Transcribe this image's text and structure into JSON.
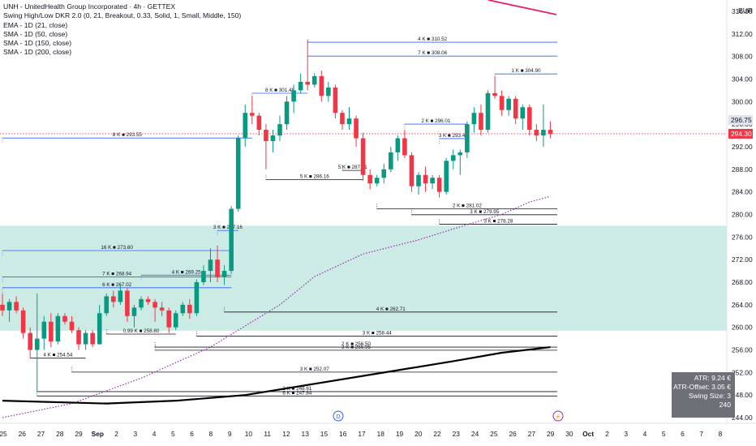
{
  "legend": {
    "title": "UNH - UnitedHealth Group Incorporated · 4h · GETTEX",
    "lines": [
      "Swing High/Low DKR 2.0 (0, 21, Breakout, 0.33, Solid, 1, Small, Middle, 150)",
      "EMA - 1D (21, close)",
      "SMA - 1D (50, close)",
      "SMA - 1D (150, close)",
      "SMA - 1D (200, close)"
    ]
  },
  "currency": "EUR",
  "stats_box": [
    "ATR: 9.24 €",
    "ATR-Offset: 3.05 €",
    "Swing Size: 3",
    "240"
  ],
  "event_markers": [
    {
      "label": "D",
      "date": "Sep 13",
      "color": "#2962ff"
    },
    {
      "label": "⚡",
      "date": "Sep 28",
      "color": "#9c27b0"
    }
  ],
  "chart_data": {
    "type": "candlestick",
    "title": "UNH - UnitedHealth Group Incorporated · 4h · GETTEX",
    "y_unit": "EUR",
    "ylim": [
      243,
      318
    ],
    "y_ticks": [
      244,
      248,
      252,
      256,
      260,
      264,
      268,
      272,
      276,
      280,
      284,
      288,
      292,
      296,
      300,
      304,
      308,
      312,
      316
    ],
    "x_tick_labels": [
      "25",
      "26",
      "27",
      "28",
      "29",
      "Sep",
      "2",
      "3",
      "4",
      "5",
      "6",
      "8",
      "9",
      "10",
      "11",
      "12",
      "13",
      "15",
      "16",
      "17",
      "18",
      "19",
      "20",
      "22",
      "23",
      "24",
      "25",
      "26",
      "27",
      "29",
      "30",
      "Oct",
      "2",
      "3",
      "4",
      "5",
      "6",
      "7",
      "8"
    ],
    "price_labels": {
      "last_high": "296.75",
      "last": "294.30"
    },
    "highlight_zone": {
      "from": 259.4,
      "to": 278.0,
      "color": "#cdebe5"
    },
    "candles": [
      [
        264.0,
        266.0,
        262.0,
        263.0
      ],
      [
        263.0,
        265.0,
        261.0,
        264.5
      ],
      [
        264.5,
        265.5,
        262.5,
        263.0
      ],
      [
        263.0,
        263.5,
        258.0,
        259.0
      ],
      [
        259.0,
        260.0,
        254.5,
        256.0
      ],
      [
        256.0,
        266.0,
        248.5,
        258.0
      ],
      [
        258.0,
        262.0,
        256.0,
        261.0
      ],
      [
        261.0,
        262.5,
        256.5,
        257.5
      ],
      [
        257.5,
        262.5,
        257.0,
        262.0
      ],
      [
        262.0,
        262.5,
        260.5,
        261.0
      ],
      [
        261.0,
        262.0,
        259.0,
        259.5
      ],
      [
        259.5,
        260.0,
        256.0,
        257.0
      ],
      [
        257.0,
        259.5,
        256.0,
        259.0
      ],
      [
        259.0,
        259.5,
        256.5,
        257.0
      ],
      [
        257.0,
        264.0,
        257.0,
        262.5
      ],
      [
        262.5,
        266.0,
        262.0,
        265.5
      ],
      [
        265.5,
        266.5,
        263.5,
        264.5
      ],
      [
        264.5,
        267.5,
        264.0,
        266.5
      ],
      [
        266.5,
        267.0,
        261.0,
        262.0
      ],
      [
        262.0,
        264.0,
        260.0,
        263.5
      ],
      [
        263.5,
        265.5,
        263.0,
        265.0
      ],
      [
        265.0,
        265.5,
        264.0,
        264.5
      ],
      [
        264.5,
        265.0,
        261.0,
        263.5
      ],
      [
        263.5,
        264.5,
        262.0,
        263.0
      ],
      [
        263.0,
        263.5,
        259.0,
        260.0
      ],
      [
        260.0,
        263.0,
        259.5,
        262.5
      ],
      [
        262.5,
        264.5,
        262.0,
        264.0
      ],
      [
        264.0,
        265.0,
        261.5,
        262.5
      ],
      [
        262.5,
        268.5,
        262.0,
        268.0
      ],
      [
        268.0,
        271.0,
        267.5,
        270.0
      ],
      [
        270.0,
        274.0,
        268.0,
        272.0
      ],
      [
        272.0,
        274.5,
        268.0,
        269.0
      ],
      [
        269.0,
        271.0,
        267.5,
        270.0
      ],
      [
        270.0,
        281.5,
        269.5,
        281.0
      ],
      [
        281.0,
        294.0,
        280.5,
        293.5
      ],
      [
        293.5,
        299.5,
        292.0,
        298.0
      ],
      [
        298.0,
        301.0,
        296.0,
        297.5
      ],
      [
        297.5,
        298.0,
        294.0,
        295.0
      ],
      [
        295.0,
        296.0,
        288.0,
        293.0
      ],
      [
        293.0,
        295.0,
        291.0,
        294.0
      ],
      [
        294.0,
        297.5,
        293.0,
        296.0
      ],
      [
        296.0,
        301.0,
        295.0,
        300.0
      ],
      [
        300.0,
        303.0,
        298.0,
        302.0
      ],
      [
        302.0,
        305.0,
        301.5,
        303.5
      ],
      [
        303.5,
        311.0,
        302.0,
        303.0
      ],
      [
        303.0,
        305.0,
        302.5,
        304.5
      ],
      [
        304.5,
        305.5,
        300.0,
        301.0
      ],
      [
        301.0,
        303.5,
        300.0,
        302.5
      ],
      [
        302.5,
        303.0,
        297.0,
        298.0
      ],
      [
        298.0,
        298.5,
        295.0,
        296.0
      ],
      [
        296.0,
        299.0,
        295.0,
        297.0
      ],
      [
        297.0,
        297.5,
        292.0,
        293.5
      ],
      [
        293.5,
        294.5,
        286.0,
        287.0
      ],
      [
        287.0,
        288.0,
        284.5,
        285.5
      ],
      [
        285.5,
        287.0,
        285.0,
        286.5
      ],
      [
        286.5,
        289.0,
        285.5,
        288.0
      ],
      [
        288.0,
        292.0,
        287.5,
        291.0
      ],
      [
        291.0,
        294.0,
        289.5,
        293.5
      ],
      [
        293.5,
        295.0,
        290.0,
        290.5
      ],
      [
        290.5,
        291.0,
        284.0,
        285.0
      ],
      [
        285.0,
        287.5,
        283.5,
        287.0
      ],
      [
        287.0,
        288.5,
        284.0,
        285.5
      ],
      [
        285.5,
        287.0,
        284.5,
        286.5
      ],
      [
        286.5,
        287.0,
        283.0,
        284.0
      ],
      [
        284.0,
        290.0,
        283.5,
        289.5
      ],
      [
        289.5,
        291.5,
        288.0,
        290.5
      ],
      [
        290.5,
        291.5,
        287.0,
        291.0
      ],
      [
        291.0,
        296.5,
        290.0,
        296.0
      ],
      [
        296.0,
        299.0,
        294.5,
        298.0
      ],
      [
        298.0,
        299.5,
        294.0,
        295.0
      ],
      [
        295.0,
        302.0,
        294.5,
        301.5
      ],
      [
        301.5,
        304.5,
        300.5,
        301.0
      ],
      [
        301.0,
        302.0,
        297.5,
        298.5
      ],
      [
        298.5,
        301.0,
        297.5,
        300.5
      ],
      [
        300.5,
        301.0,
        296.0,
        297.0
      ],
      [
        297.0,
        299.5,
        295.0,
        299.0
      ],
      [
        299.0,
        299.5,
        294.0,
        295.0
      ],
      [
        295.0,
        296.0,
        293.0,
        294.0
      ],
      [
        294.0,
        299.5,
        292.0,
        295.0
      ],
      [
        295.0,
        296.5,
        293.5,
        294.3
      ]
    ],
    "ema21_1D": [
      [
        0,
        244.0
      ],
      [
        10,
        246.5
      ],
      [
        20,
        251.0
      ],
      [
        30,
        256.5
      ],
      [
        40,
        264.0
      ],
      [
        45,
        269.0
      ],
      [
        52,
        273.0
      ],
      [
        60,
        275.5
      ],
      [
        67,
        278.2
      ],
      [
        72,
        280.0
      ],
      [
        76,
        282.2
      ],
      [
        79,
        283.2
      ]
    ],
    "sma200_1D": [
      [
        0,
        247.0
      ],
      [
        15,
        246.5
      ],
      [
        25,
        247.0
      ],
      [
        35,
        248.0
      ],
      [
        45,
        250.0
      ],
      [
        55,
        252.0
      ],
      [
        65,
        254.0
      ],
      [
        72,
        255.5
      ],
      [
        79,
        256.5
      ]
    ],
    "swing_levels": [
      {
        "label": "4 K ■ 310.52",
        "value": 310.52,
        "from": 44,
        "to": 80,
        "color": "#2962ff"
      },
      {
        "label": "7 K ■ 308.06",
        "value": 308.06,
        "from": 44,
        "to": 80,
        "color": "#2962ff"
      },
      {
        "label": "1 K ■ 304.90",
        "value": 304.9,
        "from": 71,
        "to": 80,
        "color": "#2962ff"
      },
      {
        "label": "8 K ■ 301.48",
        "value": 301.48,
        "from": 36,
        "to": 44,
        "color": "#2962ff"
      },
      {
        "label": "2 K ■ 296.01",
        "value": 296.01,
        "from": 58,
        "to": 67,
        "color": "#2962ff"
      },
      {
        "label": "3 K ■ 293.44",
        "value": 293.44,
        "from": 63,
        "to": 67,
        "color": "#2962ff"
      },
      {
        "label": "8 K ■ 293.55",
        "value": 293.55,
        "from": 0,
        "to": 36,
        "color": "#2962ff"
      },
      {
        "label": "5 K ■ 287.81",
        "value": 287.81,
        "from": 49,
        "to": 52,
        "color": "#131722"
      },
      {
        "label": "5 K ■ 286.16",
        "value": 286.16,
        "from": 38,
        "to": 52,
        "color": "#131722"
      },
      {
        "label": "2 K ■ 281.02",
        "value": 281.02,
        "from": 54,
        "to": 80,
        "color": "#131722"
      },
      {
        "label": "3 K ■ 279.95",
        "value": 279.95,
        "from": 59,
        "to": 80,
        "color": "#131722"
      },
      {
        "label": "3 K ■ 278.28",
        "value": 278.28,
        "from": 63,
        "to": 80,
        "color": "#131722"
      },
      {
        "label": "3 K ■ 277.16",
        "value": 277.16,
        "from": 31,
        "to": 34,
        "color": "#2962ff"
      },
      {
        "label": "16 K ■ 273.60",
        "value": 273.6,
        "from": 0,
        "to": 33,
        "color": "#2962ff"
      },
      {
        "label": "7 K ■ 268.94",
        "value": 268.94,
        "from": 0,
        "to": 33,
        "color": "#2962ff"
      },
      {
        "label": "4 K ■ 269.25",
        "value": 269.25,
        "from": 20,
        "to": 33,
        "color": "#2962ff"
      },
      {
        "label": "6 K ■ 267.02",
        "value": 267.02,
        "from": 0,
        "to": 33,
        "color": "#2962ff"
      },
      {
        "label": "4 K ■ 262.71",
        "value": 262.71,
        "from": 32,
        "to": 80,
        "color": "#131722"
      },
      {
        "label": "0.99 K ■ 258.80",
        "value": 258.8,
        "from": 15,
        "to": 25,
        "color": "#131722"
      },
      {
        "label": "3 K ■ 258.44",
        "value": 258.44,
        "from": 28,
        "to": 80,
        "color": "#131722"
      },
      {
        "label": "2 K ■ 256.50",
        "value": 256.5,
        "from": 22,
        "to": 80,
        "color": "#131722"
      },
      {
        "label": "3 K ■ 255.95",
        "value": 255.95,
        "from": 22,
        "to": 80,
        "color": "#131722"
      },
      {
        "label": "4 K ■ 254.54",
        "value": 254.54,
        "from": 4,
        "to": 12,
        "color": "#131722"
      },
      {
        "label": "3 K ■ 252.07",
        "value": 252.07,
        "from": 10,
        "to": 80,
        "color": "#131722"
      },
      {
        "label": "3 K ■ 248.61",
        "value": 248.61,
        "from": 5,
        "to": 80,
        "color": "#131722"
      },
      {
        "label": "6 K ■ 247.84",
        "value": 247.84,
        "from": 5,
        "to": 80,
        "color": "#131722"
      }
    ]
  }
}
